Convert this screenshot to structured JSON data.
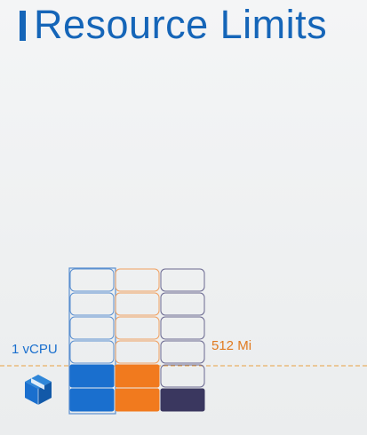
{
  "title": "Resource Limits",
  "limits": {
    "cpu_label": "1 vCPU",
    "memory_label": "512 Mi"
  },
  "icons": {
    "title_marker": "vertical-bar",
    "pod": "cube-icon"
  },
  "colors": {
    "title": "#1565b8",
    "title_marker": "#1565b8",
    "cpu": "#1a6fce",
    "memory": "#f17a1e",
    "third": "#3a375f",
    "grid_border_cpu": "#5a8fd0",
    "grid_border_mem": "#f0a060",
    "grid_border_third": "#6a6890",
    "limit_line": "#e8a040",
    "cpu_label": "#1a6fce",
    "memory_label": "#e07a20"
  },
  "grid": {
    "columns": 3,
    "rows": 6,
    "filled": {
      "cpu_rows": 2,
      "memory_rows": 2,
      "third_rows": 1
    }
  }
}
